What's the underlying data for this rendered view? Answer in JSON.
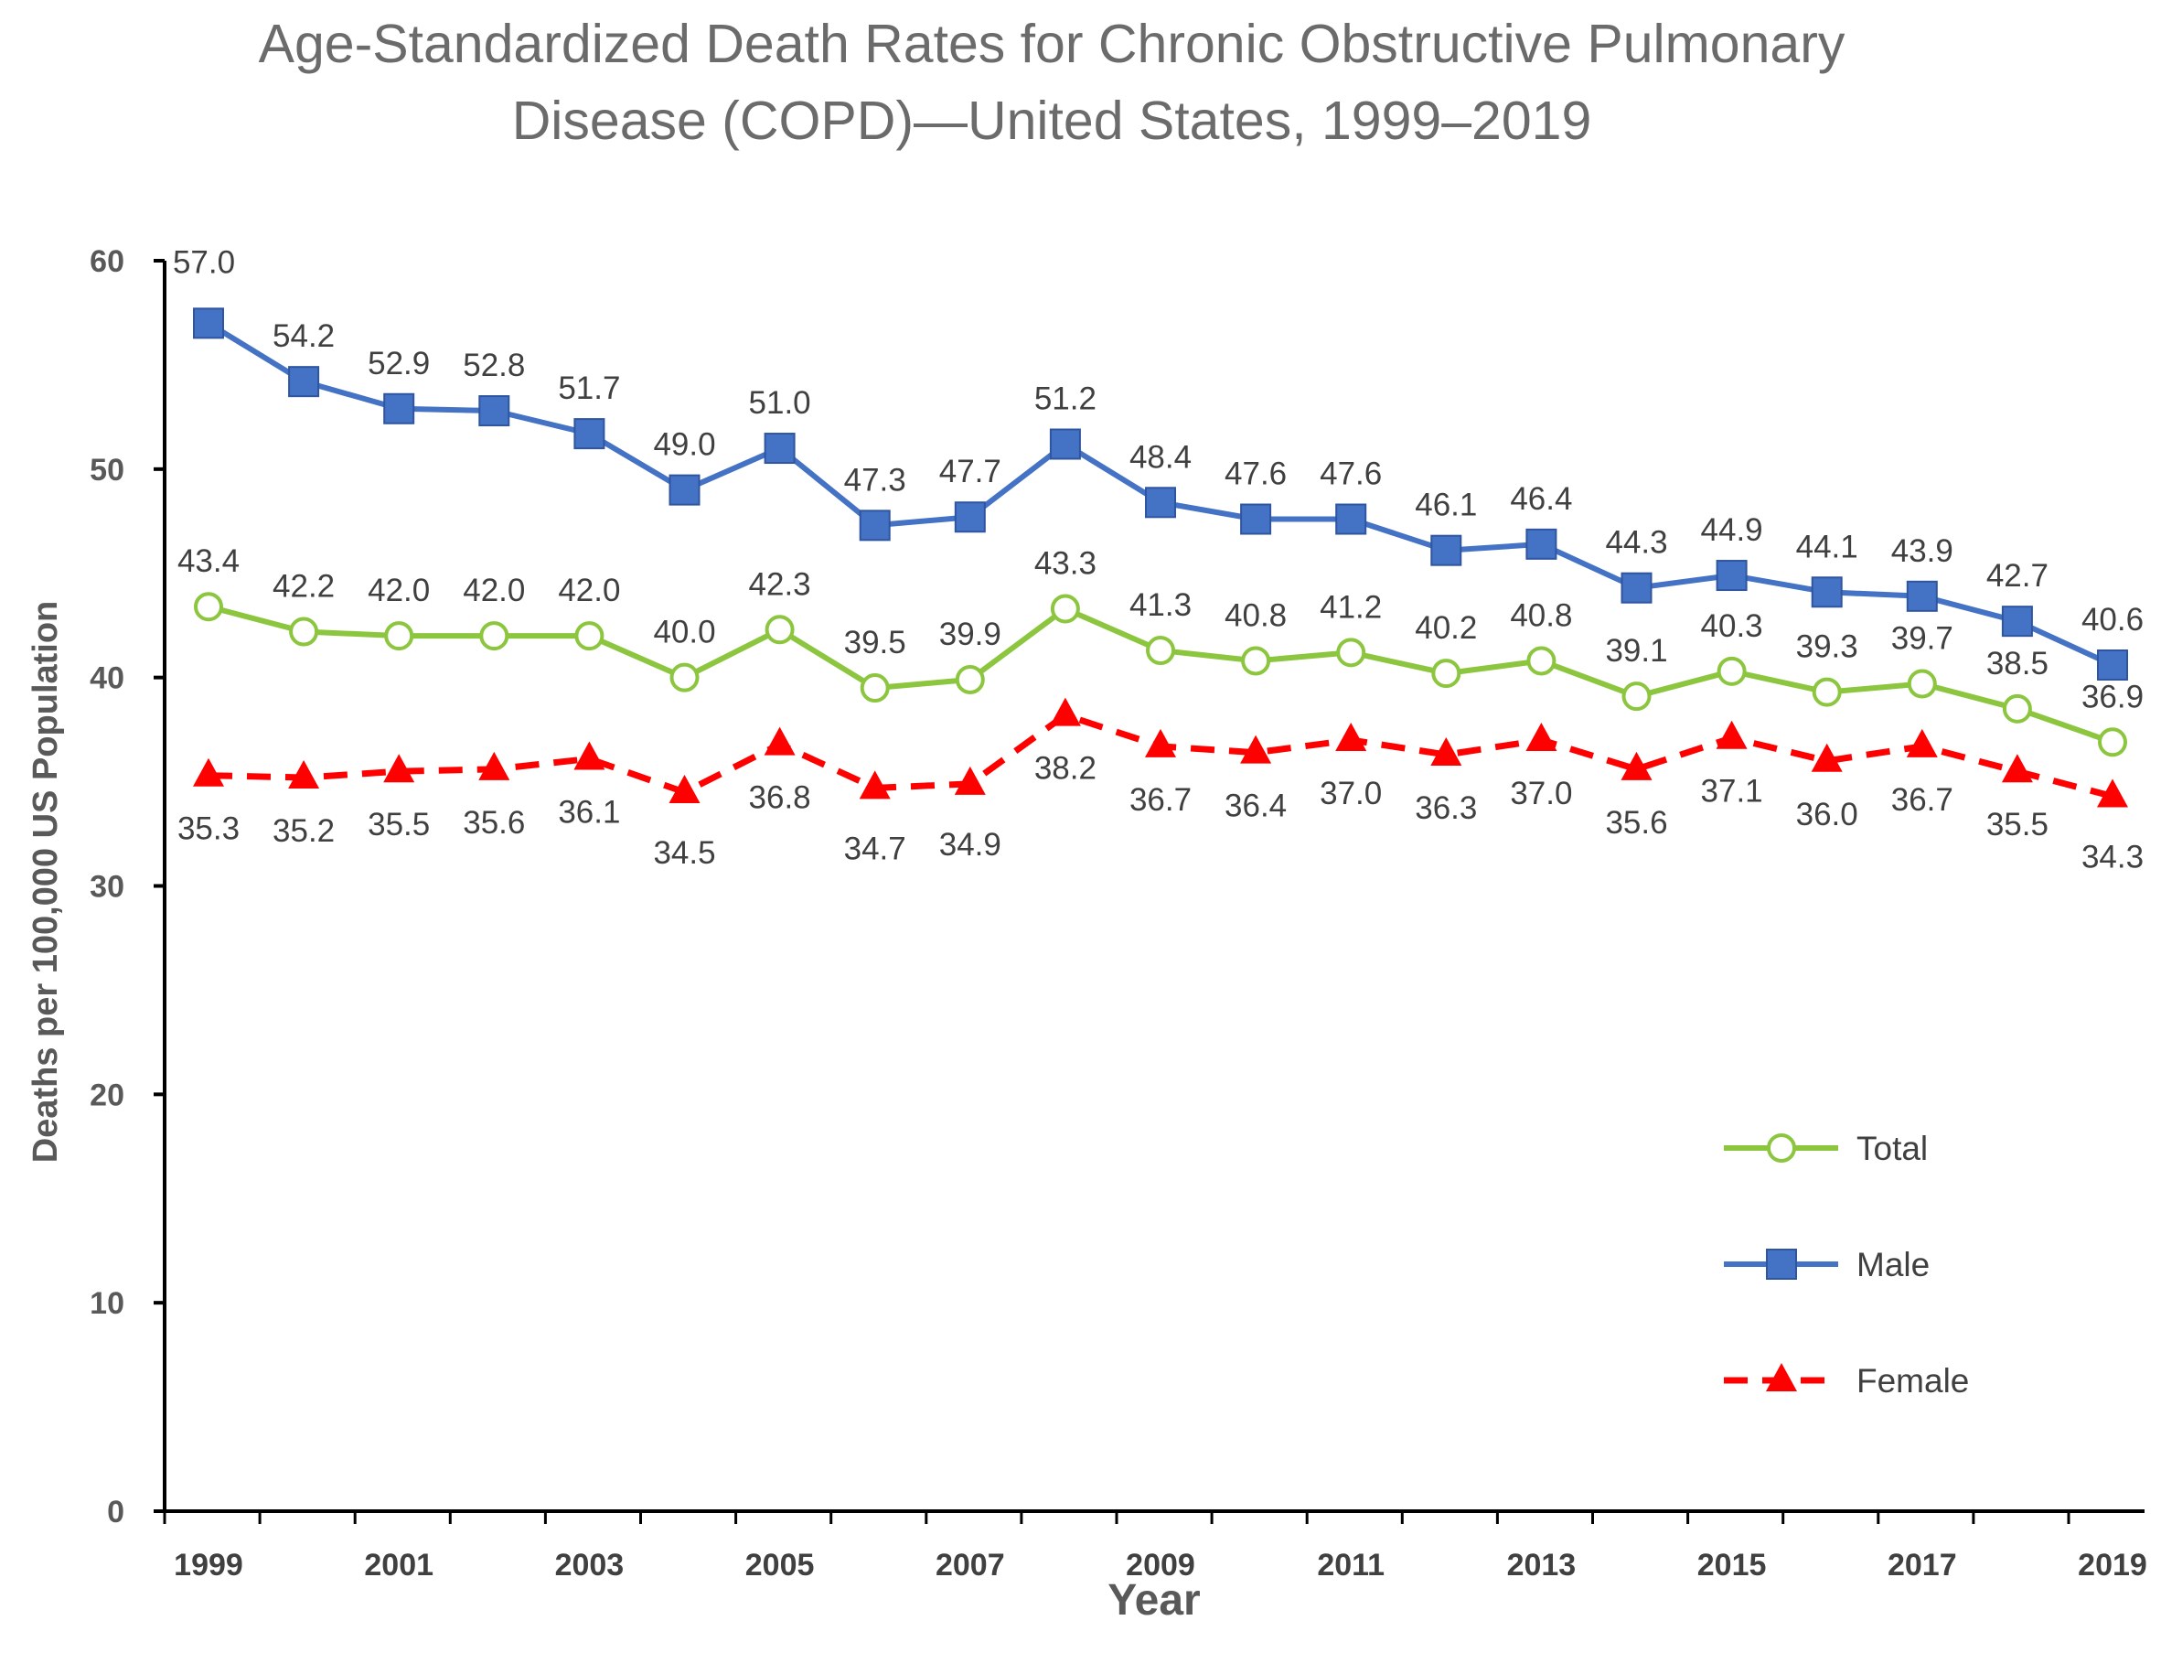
{
  "chart_data": {
    "type": "line",
    "title": "Age-Standardized Death Rates for Chronic Obstructive Pulmonary Disease (COPD)—United States, 1999–2019",
    "title_lines": [
      "Age-Standardized Death Rates for Chronic Obstructive Pulmonary",
      "Disease (COPD)—United States, 1999–2019"
    ],
    "xlabel": "Year",
    "ylabel": "Deaths per 100,000 US Population",
    "ylim": [
      0,
      60
    ],
    "yticks": [
      "0",
      "10",
      "20",
      "30",
      "40",
      "50",
      "60"
    ],
    "x": [
      1999,
      2000,
      2001,
      2002,
      2003,
      2004,
      2005,
      2006,
      2007,
      2008,
      2009,
      2010,
      2011,
      2012,
      2013,
      2014,
      2015,
      2016,
      2017,
      2018,
      2019
    ],
    "xtick_labels": [
      "1999",
      "2001",
      "2003",
      "2005",
      "2007",
      "2009",
      "2011",
      "2013",
      "2015",
      "2017",
      "2019"
    ],
    "grid": false,
    "legend_position": "right",
    "series": [
      {
        "key": "total",
        "name": "Total",
        "color": "#8cc63f",
        "marker": "circle-open",
        "dashed": false,
        "label_position": "above",
        "values": [
          43.4,
          42.2,
          42.0,
          42.0,
          42.0,
          40.0,
          42.3,
          39.5,
          39.9,
          43.3,
          41.3,
          40.8,
          41.2,
          40.2,
          40.8,
          39.1,
          40.3,
          39.3,
          39.7,
          38.5,
          36.9
        ],
        "labels": [
          "43.4",
          "42.2",
          "42.0",
          "42.0",
          "42.0",
          "40.0",
          "42.3",
          "39.5",
          "39.9",
          "43.3",
          "41.3",
          "40.8",
          "41.2",
          "40.2",
          "40.8",
          "39.1",
          "40.3",
          "39.3",
          "39.7",
          "38.5",
          "36.9"
        ]
      },
      {
        "key": "male",
        "name": "Male",
        "color": "#4472c4",
        "marker": "square",
        "dashed": false,
        "label_position": "above",
        "values": [
          57.0,
          54.2,
          52.9,
          52.8,
          51.7,
          49.0,
          51.0,
          47.3,
          47.7,
          51.2,
          48.4,
          47.6,
          47.6,
          46.1,
          46.4,
          44.3,
          44.9,
          44.1,
          43.9,
          42.7,
          40.6
        ],
        "labels": [
          "57.0",
          "54.2",
          "52.9",
          "52.8",
          "51.7",
          "49.0",
          "51.0",
          "47.3",
          "47.7",
          "51.2",
          "48.4",
          "47.6",
          "47.6",
          "46.1",
          "46.4",
          "44.3",
          "44.9",
          "44.1",
          "43.9",
          "42.7",
          "40.6"
        ]
      },
      {
        "key": "female",
        "name": "Female",
        "color": "#ff0000",
        "marker": "triangle",
        "dashed": true,
        "label_position": "below",
        "values": [
          35.3,
          35.2,
          35.5,
          35.6,
          36.1,
          34.5,
          36.8,
          34.7,
          34.9,
          38.2,
          36.7,
          36.4,
          37.0,
          36.3,
          37.0,
          35.6,
          37.1,
          36.0,
          36.7,
          35.5,
          34.3
        ],
        "labels": [
          "35.3",
          "35.2",
          "35.5",
          "35.6",
          "36.1",
          "34.5",
          "36.8",
          "34.7",
          "34.9",
          "38.2",
          "36.7",
          "36.4",
          "37.0",
          "36.3",
          "37.0",
          "35.6",
          "37.1",
          "36.0",
          "36.7",
          "35.5",
          "34.3"
        ]
      }
    ]
  }
}
